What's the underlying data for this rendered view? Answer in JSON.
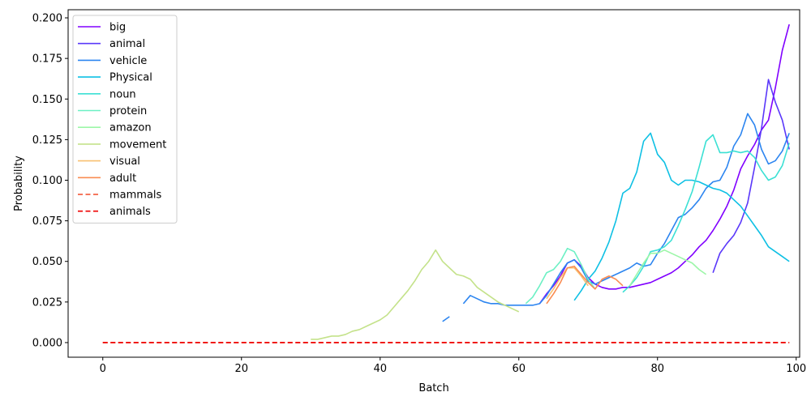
{
  "chart_data": {
    "type": "line",
    "xlabel": "Batch",
    "ylabel": "Probability",
    "xlim": [
      -5,
      100.5
    ],
    "ylim": [
      -0.009,
      0.205
    ],
    "xticks": [
      0,
      20,
      40,
      60,
      80,
      100
    ],
    "xtick_labels": [
      "0",
      "20",
      "40",
      "60",
      "80",
      "100"
    ],
    "yticks": [
      0.0,
      0.025,
      0.05,
      0.075,
      0.1,
      0.125,
      0.15,
      0.175,
      0.2
    ],
    "ytick_labels": [
      "0.000",
      "0.025",
      "0.050",
      "0.075",
      "0.100",
      "0.125",
      "0.150",
      "0.175",
      "0.200"
    ],
    "grid": false,
    "legend_position": "top-left",
    "series": [
      {
        "name": "big",
        "color": "#8000ff",
        "dash": false,
        "x": [
          63,
          64,
          65,
          66,
          67,
          68,
          69,
          70,
          71,
          72,
          73,
          74,
          75,
          76,
          77,
          78,
          79,
          80,
          81,
          82,
          83,
          84,
          85,
          86,
          87,
          88,
          89,
          90,
          91,
          92,
          93,
          94,
          95,
          96,
          97,
          98,
          99
        ],
        "y": [
          0.024,
          0.03,
          0.035,
          0.041,
          0.049,
          0.051,
          0.047,
          0.04,
          0.036,
          0.034,
          0.033,
          0.033,
          0.034,
          0.034,
          0.035,
          0.036,
          0.037,
          0.039,
          0.041,
          0.043,
          0.046,
          0.05,
          0.054,
          0.059,
          0.063,
          0.069,
          0.076,
          0.084,
          0.094,
          0.107,
          0.115,
          0.122,
          0.131,
          0.137,
          0.157,
          0.18,
          0.196
        ]
      },
      {
        "name": "animal",
        "color": "#5a38fa",
        "dash": false,
        "x": [
          88,
          89,
          90,
          91,
          92,
          93,
          94,
          95,
          96,
          97,
          98,
          99
        ],
        "y": [
          0.043,
          0.055,
          0.061,
          0.066,
          0.074,
          0.086,
          0.108,
          0.132,
          0.162,
          0.148,
          0.137,
          0.119
        ]
      },
      {
        "name": "vehicle",
        "color": "#2c85f0",
        "dash": false,
        "x": [
          49,
          50,
          null,
          52,
          53,
          54,
          55,
          56,
          57,
          58,
          59,
          60,
          61,
          62,
          63,
          64,
          65,
          66,
          67,
          68,
          69,
          70,
          71,
          72,
          73,
          74,
          75,
          76,
          77,
          78,
          79,
          80,
          81,
          82,
          83,
          84,
          85,
          86,
          87,
          88,
          89,
          90,
          91,
          92,
          93,
          94,
          95,
          96,
          97,
          98,
          99
        ],
        "y": [
          0.013,
          0.016,
          null,
          0.024,
          0.029,
          0.027,
          0.025,
          0.024,
          0.024,
          0.023,
          0.023,
          0.023,
          0.023,
          0.023,
          0.024,
          0.029,
          0.036,
          0.043,
          0.049,
          0.051,
          0.046,
          0.038,
          0.036,
          0.038,
          0.04,
          0.042,
          0.044,
          0.046,
          0.049,
          0.047,
          0.048,
          0.055,
          0.061,
          0.069,
          0.077,
          0.079,
          0.083,
          0.088,
          0.095,
          0.099,
          0.1,
          0.108,
          0.121,
          0.128,
          0.141,
          0.134,
          0.119,
          0.11,
          0.112,
          0.118,
          0.129
        ]
      },
      {
        "name": "Physical",
        "color": "#0ec0e4",
        "dash": false,
        "x": [
          68,
          69,
          70,
          71,
          72,
          73,
          74,
          75,
          76,
          77,
          78,
          79,
          80,
          81,
          82,
          83,
          84,
          85,
          86,
          87,
          88,
          89,
          90,
          91,
          92,
          93,
          94,
          95,
          96,
          97,
          98,
          99
        ],
        "y": [
          0.026,
          0.032,
          0.039,
          0.044,
          0.052,
          0.062,
          0.075,
          0.092,
          0.095,
          0.105,
          0.124,
          0.129,
          0.116,
          0.111,
          0.1,
          0.097,
          0.1,
          0.1,
          0.099,
          0.097,
          0.095,
          0.094,
          0.092,
          0.088,
          0.084,
          0.078,
          0.072,
          0.066,
          0.059,
          0.056,
          0.053,
          0.05
        ]
      },
      {
        "name": "noun",
        "color": "#3be0d4",
        "dash": false,
        "x": [
          75,
          76,
          77,
          78,
          79,
          80,
          81,
          82,
          83,
          84,
          85,
          86,
          87,
          88,
          89,
          90,
          91,
          92,
          93,
          94,
          95,
          96,
          97,
          98,
          99
        ],
        "y": [
          0.031,
          0.035,
          0.04,
          0.047,
          0.056,
          0.057,
          0.059,
          0.063,
          0.072,
          0.082,
          0.093,
          0.108,
          0.124,
          0.128,
          0.117,
          0.117,
          0.118,
          0.117,
          0.118,
          0.114,
          0.106,
          0.1,
          0.102,
          0.109,
          0.123
        ]
      },
      {
        "name": "protein",
        "color": "#6cf0c4",
        "dash": false,
        "x": [
          61,
          62,
          63,
          64,
          65,
          66,
          67,
          68,
          69,
          70,
          71
        ],
        "y": [
          0.024,
          0.028,
          0.035,
          0.043,
          0.045,
          0.05,
          0.058,
          0.056,
          0.048,
          0.039,
          0.033
        ]
      },
      {
        "name": "amazon",
        "color": "#9cf6a8",
        "dash": false,
        "x": [
          76,
          77,
          78,
          79,
          80,
          81,
          82,
          83,
          84,
          85,
          86,
          87
        ],
        "y": [
          0.035,
          0.042,
          0.049,
          0.055,
          0.055,
          0.057,
          0.055,
          0.053,
          0.051,
          0.049,
          0.045,
          0.042
        ]
      },
      {
        "name": "movement",
        "color": "#c4e28a",
        "dash": false,
        "x": [
          30,
          31,
          32,
          33,
          34,
          35,
          36,
          37,
          38,
          39,
          40,
          41,
          42,
          43,
          44,
          45,
          46,
          47,
          48,
          49,
          50,
          51,
          52,
          53,
          54,
          55,
          56,
          57,
          58,
          59,
          60
        ],
        "y": [
          0.002,
          0.002,
          0.003,
          0.004,
          0.004,
          0.005,
          0.007,
          0.008,
          0.01,
          0.012,
          0.014,
          0.017,
          0.022,
          0.027,
          0.032,
          0.038,
          0.045,
          0.05,
          0.057,
          0.05,
          0.046,
          0.042,
          0.041,
          0.039,
          0.034,
          0.031,
          0.028,
          0.025,
          0.023,
          0.021,
          0.019
        ]
      },
      {
        "name": "visual",
        "color": "#f8c070",
        "dash": false,
        "x": [
          64,
          65,
          66,
          67,
          68,
          69,
          70
        ],
        "y": [
          0.027,
          0.033,
          0.04,
          0.046,
          0.046,
          0.041,
          0.035
        ]
      },
      {
        "name": "adult",
        "color": "#fa8c52",
        "dash": false,
        "x": [
          64,
          65,
          66,
          67,
          68,
          69,
          70,
          71,
          72,
          73,
          74,
          75
        ],
        "y": [
          0.024,
          0.03,
          0.037,
          0.046,
          0.047,
          0.042,
          0.037,
          0.033,
          0.039,
          0.041,
          0.039,
          0.035
        ]
      },
      {
        "name": " mammals",
        "color": "#f24a28",
        "dash": true,
        "x": [
          0,
          99
        ],
        "y": [
          0.0,
          0.0
        ]
      },
      {
        "name": " animals",
        "color": "#ee0000",
        "dash": true,
        "x": [
          0,
          99
        ],
        "y": [
          0.0,
          0.0
        ]
      }
    ]
  }
}
